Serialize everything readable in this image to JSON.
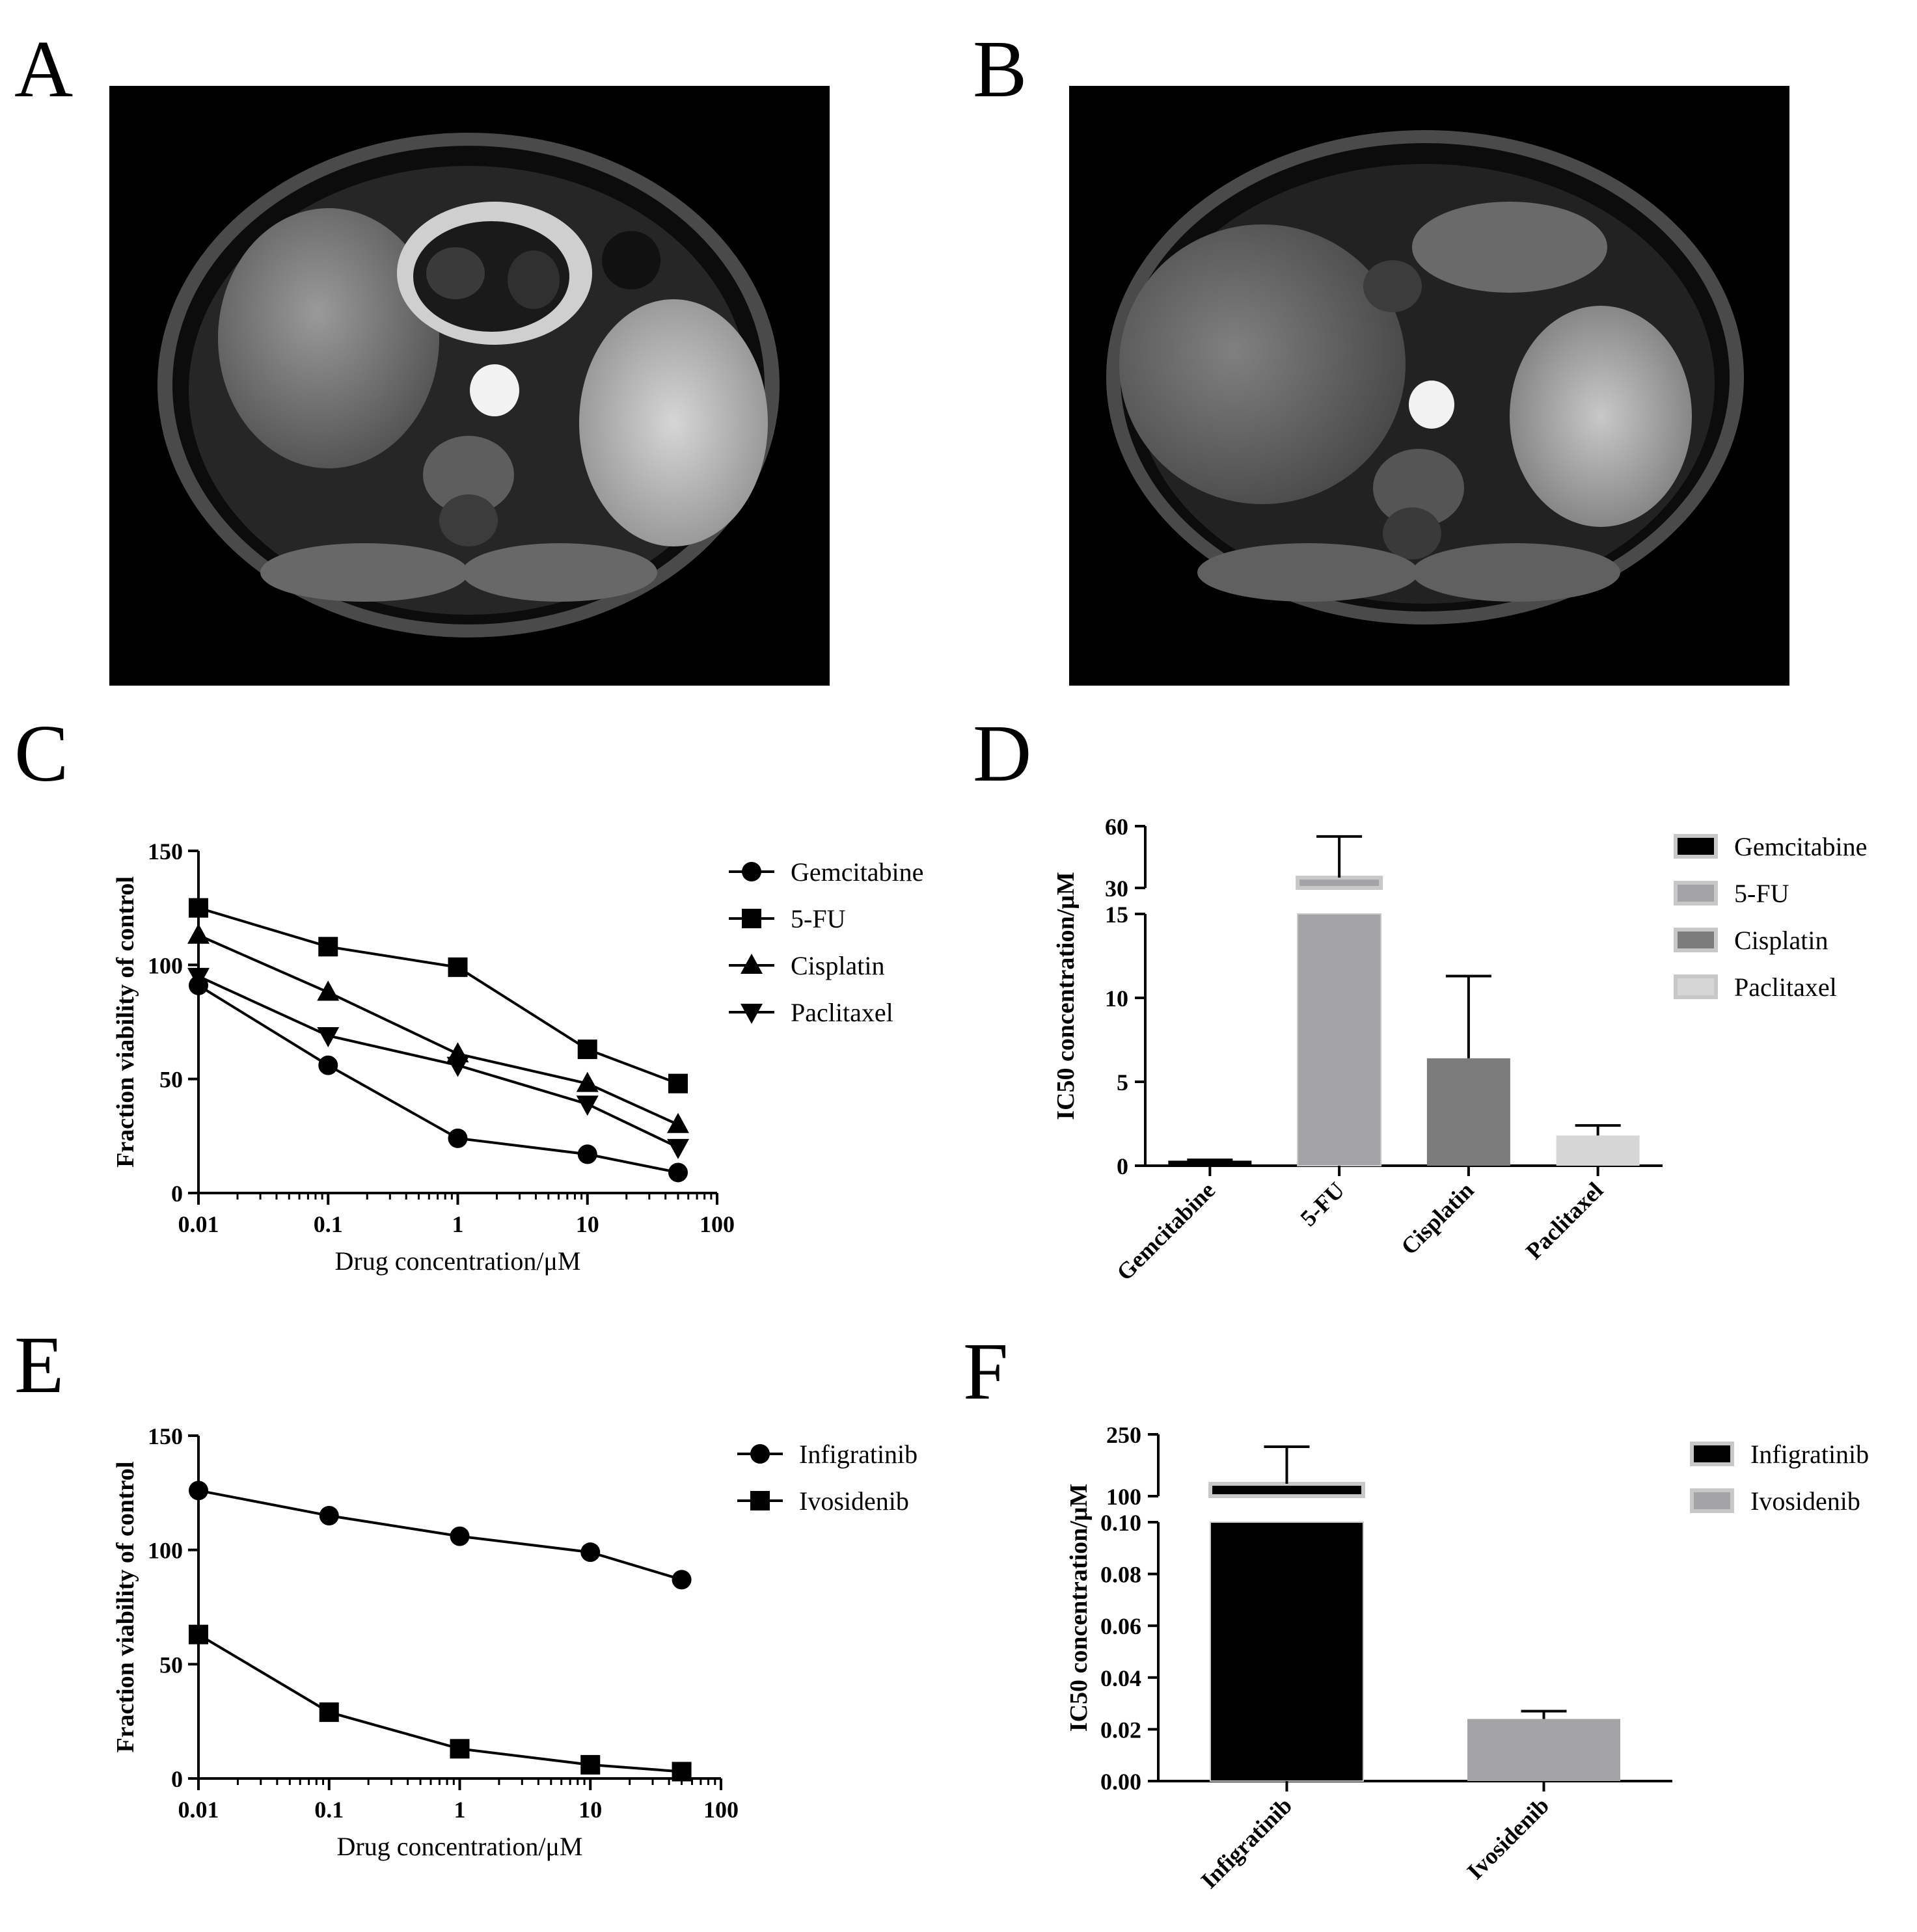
{
  "panels": {
    "A": "A",
    "B": "B",
    "C": "C",
    "D": "D",
    "E": "E",
    "F": "F"
  },
  "images": {
    "A": {
      "description_icon": "mri-axial-liver-scan-A"
    },
    "B": {
      "description_icon": "mri-axial-liver-scan-B"
    }
  },
  "chart_data": [
    {
      "id": "C",
      "type": "line",
      "xscale": "log",
      "xlabel": "Drug concentration/μM",
      "ylabel": "Fraction viability of control",
      "xticks": [
        "0.01",
        "0.1",
        "1",
        "10",
        "100"
      ],
      "yticks": [
        "0",
        "50",
        "100",
        "150"
      ],
      "ylim": [
        0,
        150
      ],
      "xlim": [
        0.01,
        100
      ],
      "x": [
        0.01,
        0.1,
        1,
        10,
        50
      ],
      "legend_position": "right",
      "series": [
        {
          "name": "Gemcitabine",
          "marker": "circle",
          "values": [
            91,
            56,
            24,
            17,
            9
          ]
        },
        {
          "name": "5-FU",
          "marker": "square",
          "values": [
            125,
            108,
            99,
            63,
            48
          ]
        },
        {
          "name": "Cisplatin",
          "marker": "triangle-up",
          "values": [
            113,
            88,
            61,
            48,
            30
          ]
        },
        {
          "name": "Paclitaxel",
          "marker": "triangle-down",
          "values": [
            95,
            69,
            56,
            39,
            20
          ]
        }
      ]
    },
    {
      "id": "D",
      "type": "bar",
      "ylabel": "IC50 concentration/μM",
      "broken_axis": true,
      "lower_yticks": [
        "0",
        "5",
        "10",
        "15"
      ],
      "upper_yticks": [
        "30",
        "60"
      ],
      "lower_ylim": [
        0,
        15
      ],
      "upper_ylim": [
        30,
        60
      ],
      "legend_position": "right",
      "categories": [
        "Gemcitabine",
        "5-FU",
        "Cisplatin",
        "Paclitaxel"
      ],
      "values": [
        0.3,
        35,
        6.4,
        1.8
      ],
      "errors": [
        0.05,
        20,
        4.9,
        0.6
      ],
      "colors": [
        "#000000",
        "#a4a4a6",
        "#7c7c7c",
        "#d6d6d6"
      ]
    },
    {
      "id": "E",
      "type": "line",
      "xscale": "log",
      "xlabel": "Drug concentration/μM",
      "ylabel": "Fraction viability of control",
      "xticks": [
        "0.01",
        "0.1",
        "1",
        "10",
        "100"
      ],
      "yticks": [
        "0",
        "50",
        "100",
        "150"
      ],
      "ylim": [
        0,
        150
      ],
      "xlim": [
        0.01,
        100
      ],
      "x": [
        0.01,
        0.1,
        1,
        10,
        50
      ],
      "legend_position": "right",
      "series": [
        {
          "name": "Infigratinib",
          "marker": "circle",
          "values": [
            126,
            115,
            106,
            99,
            87
          ]
        },
        {
          "name": "Ivosidenib",
          "marker": "square",
          "values": [
            63,
            29,
            13,
            6,
            3
          ]
        }
      ]
    },
    {
      "id": "F",
      "type": "bar",
      "ylabel": "IC50 concentration/μM",
      "broken_axis": true,
      "lower_yticks": [
        "0.00",
        "0.02",
        "0.04",
        "0.06",
        "0.08",
        "0.10"
      ],
      "upper_yticks": [
        "100",
        "250"
      ],
      "lower_ylim": [
        0,
        0.1
      ],
      "upper_ylim": [
        100,
        250
      ],
      "legend_position": "right",
      "categories": [
        "Infigratinib",
        "Ivosidenib"
      ],
      "values": [
        130,
        0.024
      ],
      "errors": [
        90,
        0.003
      ],
      "colors": [
        "#000000",
        "#a4a4a6"
      ]
    }
  ]
}
